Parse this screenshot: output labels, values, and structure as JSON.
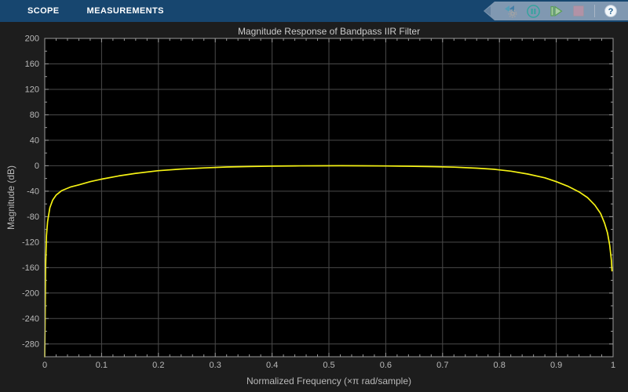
{
  "toolbar": {
    "tabs": [
      {
        "label": "SCOPE"
      },
      {
        "label": "MEASUREMENTS"
      }
    ],
    "buttons": [
      {
        "name": "step-back",
        "icon": "step-back-gear-icon"
      },
      {
        "name": "pause",
        "icon": "pause-icon"
      },
      {
        "name": "step-forward",
        "icon": "step-forward-icon"
      },
      {
        "name": "stop",
        "icon": "stop-icon"
      },
      {
        "name": "help",
        "icon": "help-icon"
      }
    ],
    "help_label": "?"
  },
  "colors": {
    "toolstrip_bg": "#17466f",
    "controls_strip_bg": "#8098b1",
    "figure_bg": "#1d1d1d",
    "plot_bg": "#000000",
    "curve": "#f5f214",
    "grid": "#4a4a4a",
    "axis": "#9a9a9a",
    "tick_label": "#b9b9b9",
    "title_color": "#cbcbcb",
    "pause_teal": "#35a39e",
    "step_green": "#5a9e56",
    "stop_mauve": "#b292a6",
    "help_blue": "#1e5f90"
  },
  "chart_data": {
    "type": "line",
    "title": "Magnitude Response of Bandpass IIR Filter",
    "xlabel": "Normalized Frequency (×π rad/sample)",
    "ylabel": "Magnitude (dB)",
    "xlim": [
      0,
      1
    ],
    "ylim": [
      -300,
      200
    ],
    "grid": true,
    "legend": "none",
    "x_ticks": [
      0,
      0.1,
      0.2,
      0.3,
      0.4,
      0.5,
      0.6,
      0.7,
      0.8,
      0.9,
      1
    ],
    "x_tick_labels": [
      "0",
      "0.1",
      "0.2",
      "0.3",
      "0.4",
      "0.5",
      "0.6",
      "0.7",
      "0.8",
      "0.9",
      "1"
    ],
    "x_minor_step": 0.02,
    "y_ticks": [
      200,
      160,
      120,
      80,
      40,
      0,
      -40,
      -80,
      -120,
      -160,
      -200,
      -240,
      -280
    ],
    "y_tick_labels": [
      "200",
      "160",
      "120",
      "80",
      "40",
      "0",
      "-40",
      "-80",
      "-120",
      "-160",
      "-200",
      "-240",
      "-280"
    ],
    "y_minor_step": 20,
    "series": [
      {
        "name": "Bandpass IIR filter magnitude response",
        "color": "#f5f214",
        "x": [
          0,
          0.0015,
          0.003,
          0.005,
          0.009,
          0.014,
          0.02,
          0.03,
          0.045,
          0.06,
          0.08,
          0.1,
          0.13,
          0.16,
          0.2,
          0.24,
          0.28,
          0.32,
          0.36,
          0.4,
          0.44,
          0.48,
          0.52,
          0.56,
          0.6,
          0.64,
          0.68,
          0.72,
          0.76,
          0.79,
          0.82,
          0.85,
          0.88,
          0.9,
          0.92,
          0.94,
          0.955,
          0.968,
          0.978,
          0.985,
          0.99,
          0.994,
          0.997,
          0.998
        ],
        "y": [
          -300,
          -160,
          -110,
          -88,
          -66,
          -54,
          -46,
          -39,
          -33.5,
          -30,
          -25,
          -21,
          -16,
          -12,
          -7.8,
          -5.2,
          -3.4,
          -2,
          -1.2,
          -0.6,
          -0.3,
          -0.1,
          -0.05,
          -0.15,
          -0.4,
          -0.8,
          -1.3,
          -2.2,
          -3.8,
          -5.5,
          -8.5,
          -13,
          -19,
          -25,
          -32,
          -41,
          -50,
          -62,
          -75,
          -90,
          -105,
          -125,
          -148,
          -165
        ]
      }
    ]
  }
}
